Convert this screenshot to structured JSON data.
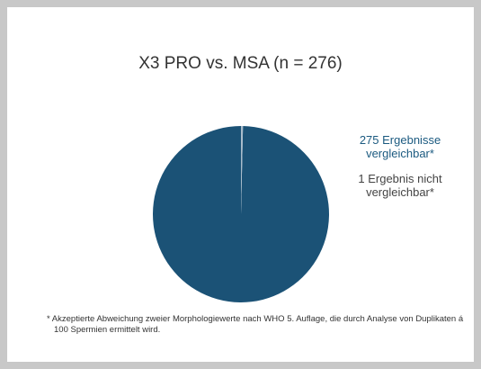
{
  "chart_data": {
    "type": "pie",
    "title": "X3 PRO vs. MSA (n = 276)",
    "series": [
      {
        "name": "275 Ergebnisse vergleichbar*",
        "color": "#1b5276",
        "values": [
          275
        ]
      },
      {
        "name": "1 Ergebnis nicht vergleichbar*",
        "color": "#a9bccb",
        "values": [
          1
        ]
      }
    ],
    "legend_text_colors": [
      "#1b5a80",
      "#444444"
    ],
    "footnote": "* Akzeptierte Abweichung zweier Morphologiewerte nach WHO 5. Auflage, die durch Analyse von Duplikaten á 100 Spermien ermittelt wird."
  }
}
